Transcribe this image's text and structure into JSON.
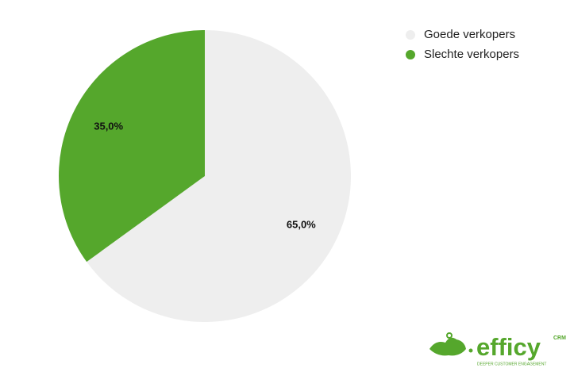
{
  "chart_data": {
    "type": "pie",
    "categories": [
      "Goede verkopers",
      "Slechte verkopers"
    ],
    "values": [
      65,
      35
    ],
    "value_labels": [
      "65,0%",
      "35,0%"
    ],
    "colors": [
      "#eeeeee",
      "#55a72c"
    ],
    "legend": "top-right"
  },
  "logo": {
    "name": "efficy",
    "suffix": "CRM",
    "tagline": "DEEPER CUSTOMER ENGAGEMENT"
  }
}
